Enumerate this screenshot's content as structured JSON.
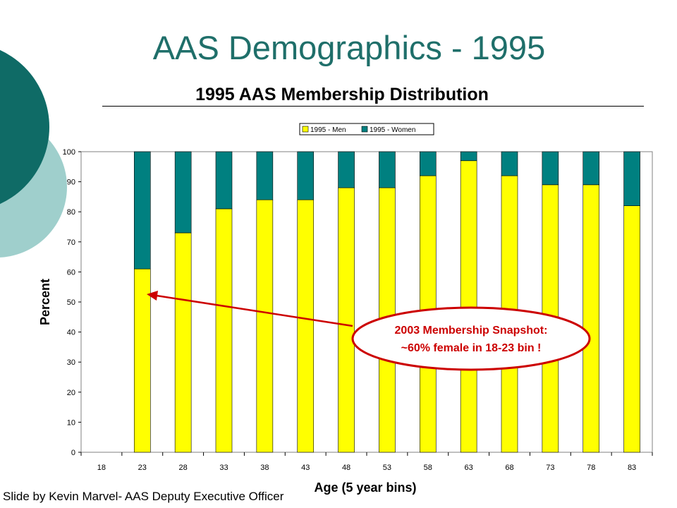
{
  "slide": {
    "title": "AAS Demographics - 1995",
    "credit": "Slide by Kevin Marvel- AAS Deputy Executive Officer"
  },
  "colors": {
    "men": "#ffff00",
    "women": "#008080",
    "title": "#1f6f6a",
    "callout": "#cc0000",
    "deco_dark": "#0f6b66",
    "deco_light": "#9fcfcc"
  },
  "callout": {
    "line1": "2003 Membership Snapshot:",
    "line2": "~60% female in 18-23 bin !"
  },
  "chart_data": {
    "type": "bar",
    "stacked": true,
    "title": "1995 AAS Membership Distribution",
    "xlabel": "Age (5 year bins)",
    "ylabel": "Percent",
    "ylim": [
      0,
      100
    ],
    "yticks": [
      0,
      10,
      20,
      30,
      40,
      50,
      60,
      70,
      80,
      90,
      100
    ],
    "grid": false,
    "legend_position": "top",
    "categories": [
      "18",
      "23",
      "28",
      "33",
      "38",
      "43",
      "48",
      "53",
      "58",
      "63",
      "68",
      "73",
      "78",
      "83"
    ],
    "series": [
      {
        "name": "1995 - Men",
        "values": [
          0,
          61,
          73,
          81,
          84,
          84,
          88,
          88,
          92,
          97,
          92,
          89,
          89,
          82
        ]
      },
      {
        "name": "1995 - Women",
        "values": [
          0,
          39,
          27,
          19,
          16,
          16,
          12,
          12,
          8,
          3,
          8,
          11,
          11,
          18
        ]
      }
    ]
  }
}
